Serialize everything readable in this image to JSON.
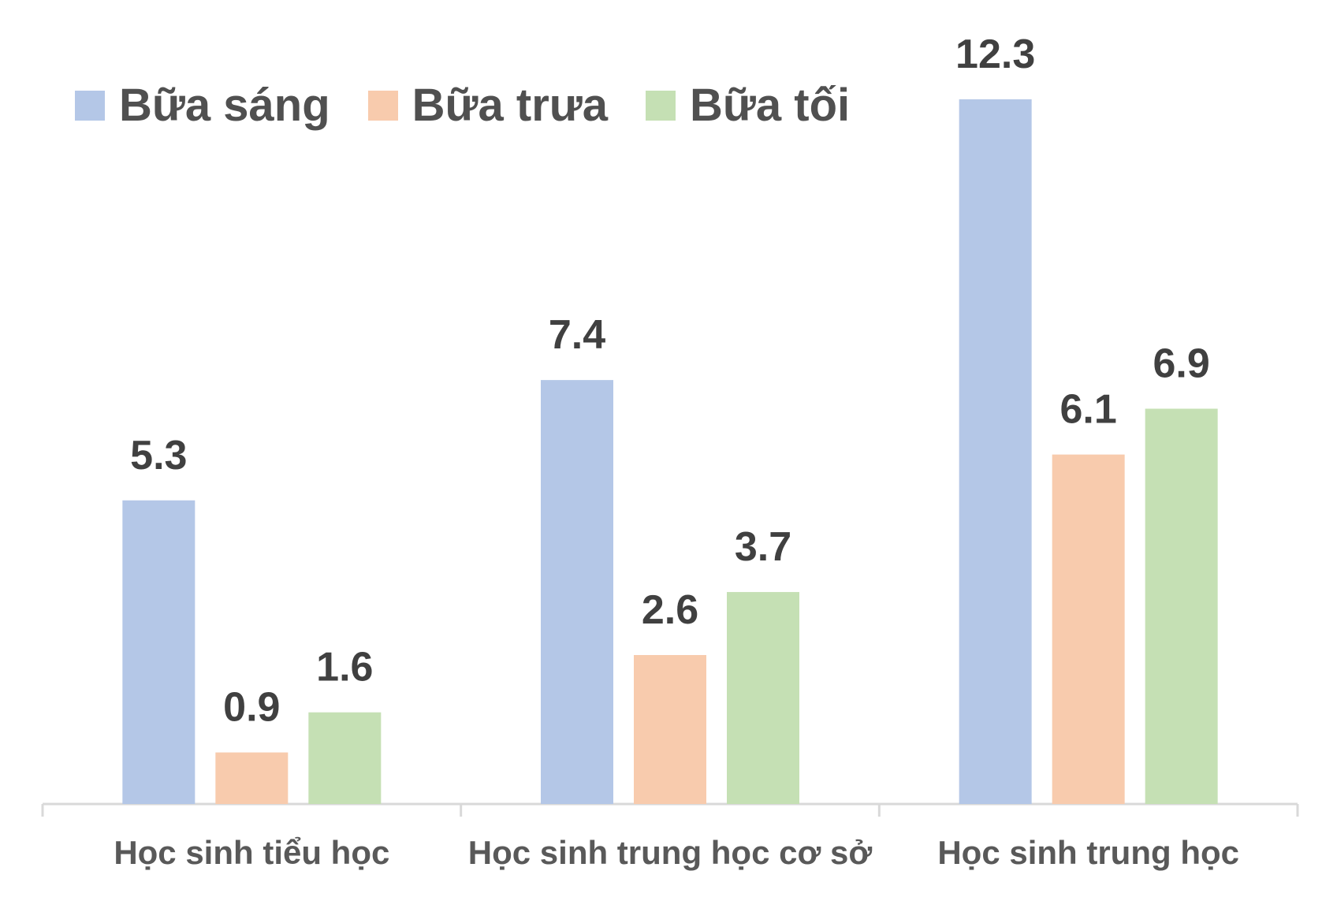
{
  "chart_data": {
    "type": "bar",
    "title": "",
    "xlabel": "",
    "ylabel": "",
    "ylim": [
      0,
      12.3
    ],
    "grid": false,
    "legend_position": "top-left",
    "categories": [
      "Học sinh tiểu học",
      "Học sinh trung học cơ sở",
      "Học sinh trung học"
    ],
    "series": [
      {
        "name": "Bữa sáng",
        "color": "#b4c7e7",
        "values": [
          5.3,
          7.4,
          12.3
        ],
        "labels": [
          "5.3",
          "7.4",
          "12.3"
        ]
      },
      {
        "name": "Bữa trưa",
        "color": "#f8cbad",
        "values": [
          0.9,
          2.6,
          6.1
        ],
        "labels": [
          "0.9",
          "2.6",
          "6.1"
        ]
      },
      {
        "name": "Bữa tối",
        "color": "#c5e0b4",
        "values": [
          1.6,
          3.7,
          6.9
        ],
        "labels": [
          "1.6",
          "3.7",
          "6.9"
        ]
      }
    ],
    "colors": {
      "text": "#404040",
      "axis": "#d9d9d9",
      "category_text": "#595959",
      "legend_text": "#505050"
    }
  }
}
